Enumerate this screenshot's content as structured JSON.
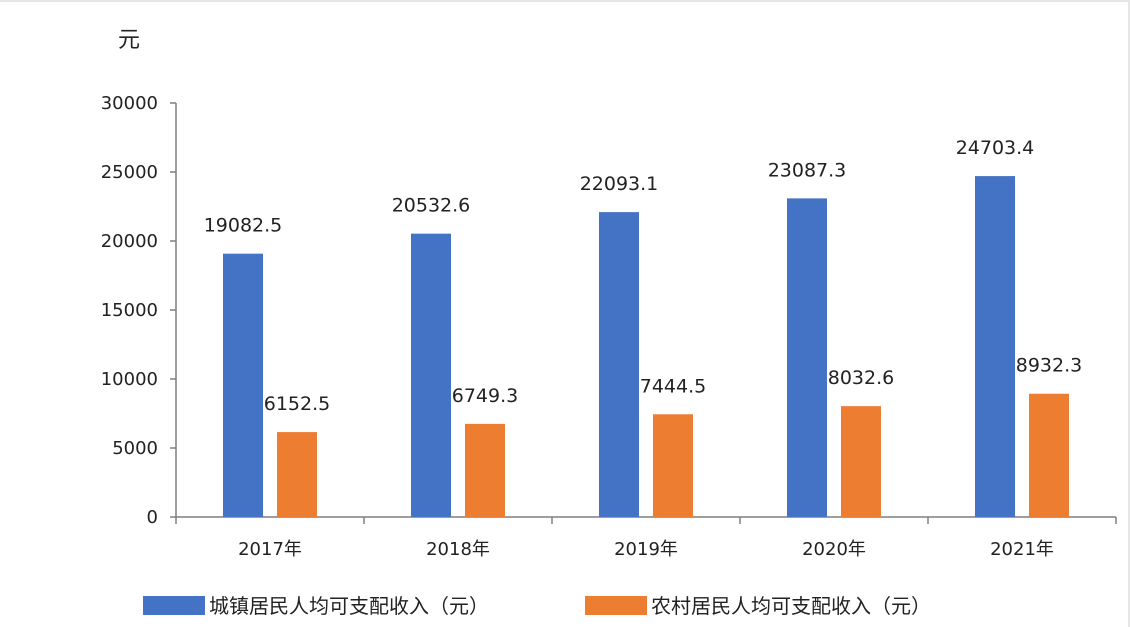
{
  "chart_data": {
    "type": "bar",
    "unit": "元",
    "categories": [
      "2017年",
      "2018年",
      "2019年",
      "2020年",
      "2021年"
    ],
    "series": [
      {
        "name": "城镇居民人均可支配收入（元）",
        "color": "#4472c4",
        "values": [
          19082.5,
          20532.6,
          22093.1,
          23087.3,
          24703.4
        ],
        "labels": [
          "19082.5",
          "20532.6",
          "22093.1",
          "23087.3",
          "24703.4"
        ]
      },
      {
        "name": "农村居民人均可支配收入（元）",
        "color": "#ed7d31",
        "values": [
          6152.5,
          6749.3,
          7444.5,
          8032.6,
          8932.3
        ],
        "labels": [
          "6152.5",
          "6749.3",
          "7444.5",
          "8032.6",
          "8932.3"
        ]
      }
    ],
    "yticks": [
      "0",
      "5000",
      "10000",
      "15000",
      "20000",
      "25000",
      "30000"
    ],
    "ylim": [
      0,
      30000
    ],
    "grid": false,
    "legend_position": "bottom"
  }
}
